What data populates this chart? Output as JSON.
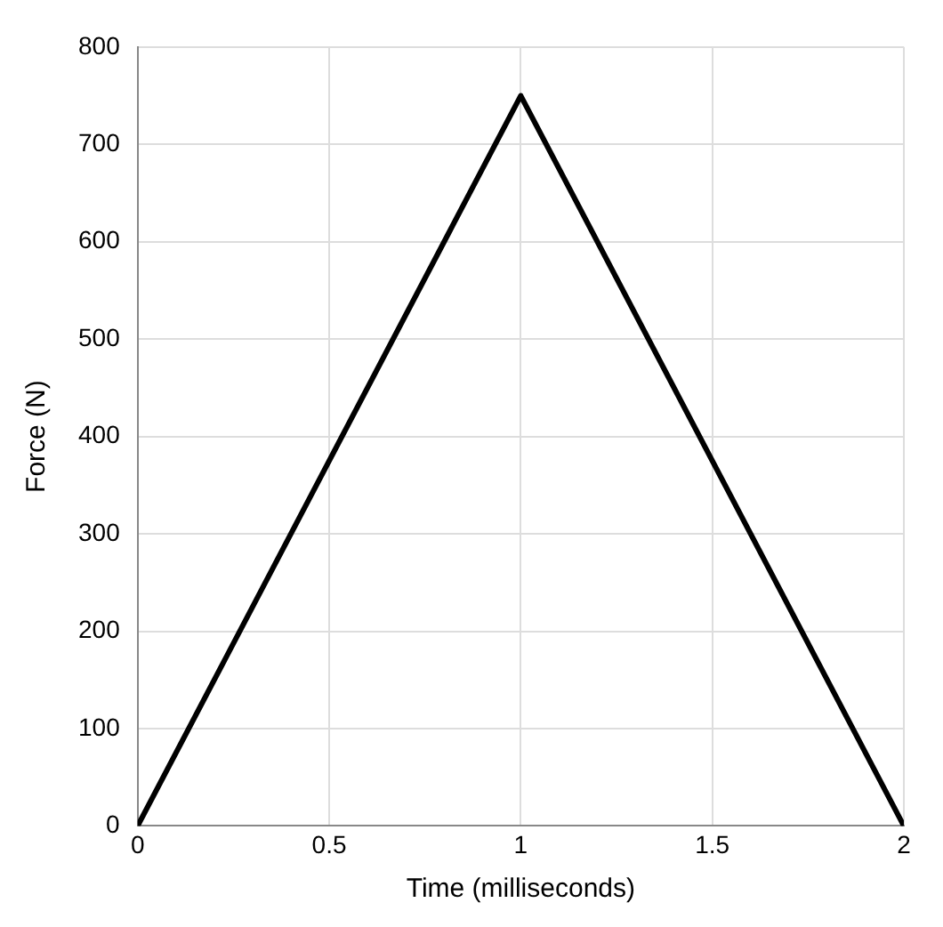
{
  "chart_data": {
    "type": "line",
    "xlabel": "Time (milliseconds)",
    "ylabel": "Force (N)",
    "x": [
      0,
      1,
      2
    ],
    "series": [
      {
        "color": "#000000",
        "values": [
          0,
          750,
          0
        ]
      }
    ],
    "xlim": [
      0,
      2
    ],
    "xticks": [
      0,
      0.5,
      1,
      1.5,
      2
    ],
    "ylim": [
      0,
      800
    ],
    "yticks": [
      0,
      100,
      200,
      300,
      400,
      500,
      600,
      700,
      800
    ],
    "grid": true,
    "legend": false,
    "marker": "none",
    "line_style": "solid"
  }
}
